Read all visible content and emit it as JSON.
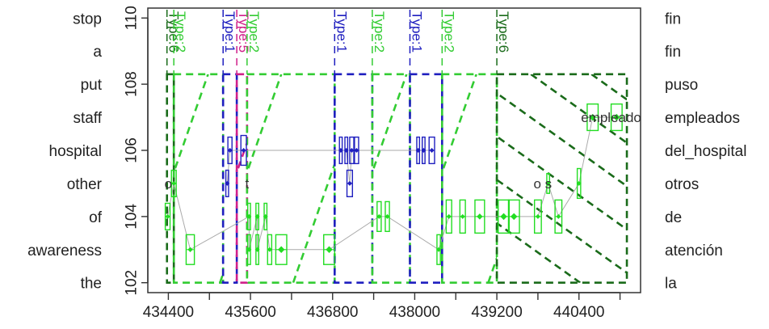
{
  "chart_data": {
    "type": "scatter",
    "title": "",
    "xlabel": "",
    "ylabel": "",
    "xlim": [
      434100,
      441300
    ],
    "ylim": [
      101.7,
      110.3
    ],
    "x_ticks": [
      434400,
      435000,
      435600,
      436200,
      436800,
      437400,
      438000,
      438600,
      439200,
      439800,
      440400,
      441000
    ],
    "x_tick_labels": [
      "434400",
      "435600",
      "436800",
      "438000",
      "439200",
      "440400"
    ],
    "x_tick_label_values": [
      434400,
      435600,
      436800,
      438000,
      439200,
      440400
    ],
    "y_ticks": [
      102,
      104,
      106,
      108,
      110
    ],
    "y_tick_labels": [
      "102",
      "104",
      "106",
      "108",
      "110"
    ],
    "left_labels": [
      {
        "y": 110,
        "text": "stop"
      },
      {
        "y": 109,
        "text": "a"
      },
      {
        "y": 108,
        "text": "put"
      },
      {
        "y": 107,
        "text": "staff"
      },
      {
        "y": 106,
        "text": "hospital"
      },
      {
        "y": 105,
        "text": "other"
      },
      {
        "y": 104,
        "text": "of"
      },
      {
        "y": 103,
        "text": "awareness"
      },
      {
        "y": 102,
        "text": "the"
      }
    ],
    "right_labels": [
      {
        "y": 110,
        "text": "fin"
      },
      {
        "y": 109,
        "text": "fin"
      },
      {
        "y": 108,
        "text": "puso"
      },
      {
        "y": 107,
        "text": "empleados"
      },
      {
        "y": 106,
        "text": "del_hospital"
      },
      {
        "y": 105,
        "text": "otros"
      },
      {
        "y": 104,
        "text": "de"
      },
      {
        "y": 103,
        "text": "atención"
      },
      {
        "y": 102,
        "text": "la"
      }
    ],
    "type_regions": [
      {
        "label": "Type:6",
        "x1": 434380,
        "x2": 434480,
        "color": "#1a6b1a",
        "pattern": "none"
      },
      {
        "label": "Type:2",
        "x1": 434480,
        "x2": 435200,
        "color": "#33cc33",
        "pattern": "diag-up"
      },
      {
        "label": "Type:1",
        "x1": 435200,
        "x2": 435400,
        "color": "#1f1fbf",
        "pattern": "none"
      },
      {
        "label": "Type:5",
        "x1": 435400,
        "x2": 435550,
        "color": "#d0208a",
        "pattern": "diag-up"
      },
      {
        "label": "Type:2",
        "x1": 435550,
        "x2": 436830,
        "color": "#33cc33",
        "pattern": "diag-up"
      },
      {
        "label": "Type:1",
        "x1": 436830,
        "x2": 437380,
        "color": "#1f1fbf",
        "pattern": "none"
      },
      {
        "label": "Type:2",
        "x1": 437380,
        "x2": 437930,
        "color": "#33cc33",
        "pattern": "diag-up"
      },
      {
        "label": "Type:1",
        "x1": 437930,
        "x2": 438400,
        "color": "#1f1fbf",
        "pattern": "none"
      },
      {
        "label": "Type:2",
        "x1": 438400,
        "x2": 439200,
        "color": "#33cc33",
        "pattern": "diag-up"
      },
      {
        "label": "Type:6",
        "x1": 439200,
        "x2": 441100,
        "color": "#1a6b1a",
        "pattern": "diag-down"
      }
    ],
    "series": [
      {
        "name": "",
        "color": "#22dd22",
        "points": [
          {
            "x": 434390,
            "y": 104,
            "w": 70,
            "h": 0.8
          },
          {
            "x": 434480,
            "y": 105,
            "w": 70,
            "h": 0.8
          },
          {
            "x": 434720,
            "y": 103,
            "w": 120,
            "h": 0.9
          },
          {
            "x": 435580,
            "y": 104,
            "w": 40,
            "h": 0.8
          },
          {
            "x": 435580,
            "y": 103,
            "w": 40,
            "h": 0.9
          },
          {
            "x": 435700,
            "y": 104,
            "w": 40,
            "h": 0.8
          },
          {
            "x": 435700,
            "y": 103,
            "w": 40,
            "h": 0.9
          },
          {
            "x": 435820,
            "y": 104,
            "w": 40,
            "h": 0.8
          },
          {
            "x": 435880,
            "y": 103,
            "w": 60,
            "h": 0.9
          },
          {
            "x": 436050,
            "y": 103,
            "w": 160,
            "h": 0.9
          },
          {
            "x": 436750,
            "y": 103,
            "w": 160,
            "h": 0.9
          },
          {
            "x": 437480,
            "y": 104,
            "w": 60,
            "h": 0.9
          },
          {
            "x": 437600,
            "y": 104,
            "w": 60,
            "h": 0.9
          },
          {
            "x": 438350,
            "y": 103,
            "w": 50,
            "h": 0.9
          },
          {
            "x": 438500,
            "y": 104,
            "w": 80,
            "h": 1.0
          },
          {
            "x": 438700,
            "y": 104,
            "w": 80,
            "h": 1.0
          },
          {
            "x": 438950,
            "y": 104,
            "w": 140,
            "h": 1.0
          },
          {
            "x": 439300,
            "y": 104,
            "w": 160,
            "h": 1.0
          },
          {
            "x": 439450,
            "y": 104,
            "w": 160,
            "h": 1.0
          },
          {
            "x": 439800,
            "y": 104,
            "w": 100,
            "h": 1.0
          },
          {
            "x": 439950,
            "y": 105,
            "w": 40,
            "h": 0.6
          },
          {
            "x": 440100,
            "y": 104,
            "w": 100,
            "h": 1.0
          },
          {
            "x": 440400,
            "y": 105,
            "w": 50,
            "h": 0.9
          },
          {
            "x": 440600,
            "y": 107,
            "w": 160,
            "h": 0.8
          },
          {
            "x": 440950,
            "y": 107,
            "w": 160,
            "h": 0.8
          }
        ]
      },
      {
        "name": "",
        "color": "#1f1fbf",
        "points": [
          {
            "x": 435300,
            "y": 106,
            "w": 60,
            "h": 0.8
          },
          {
            "x": 435260,
            "y": 105,
            "w": 40,
            "h": 0.8
          },
          {
            "x": 435500,
            "y": 106,
            "w": 80,
            "h": 0.9
          },
          {
            "x": 436920,
            "y": 106,
            "w": 40,
            "h": 0.8
          },
          {
            "x": 437000,
            "y": 106,
            "w": 40,
            "h": 0.8
          },
          {
            "x": 437080,
            "y": 106,
            "w": 60,
            "h": 0.8
          },
          {
            "x": 437150,
            "y": 106,
            "w": 60,
            "h": 0.8
          },
          {
            "x": 437050,
            "y": 105,
            "w": 80,
            "h": 0.8
          },
          {
            "x": 438050,
            "y": 106,
            "w": 40,
            "h": 0.8
          },
          {
            "x": 438130,
            "y": 106,
            "w": 40,
            "h": 0.8
          },
          {
            "x": 438250,
            "y": 106,
            "w": 80,
            "h": 0.8
          }
        ]
      }
    ],
    "annotations": [
      {
        "x": 434400,
        "y": 105,
        "text": "o"
      },
      {
        "x": 435550,
        "y": 105,
        "text": "t"
      },
      {
        "x": 439870,
        "y": 105,
        "text": "o s"
      },
      {
        "x": 440870,
        "y": 107,
        "text": "empleado"
      }
    ]
  }
}
